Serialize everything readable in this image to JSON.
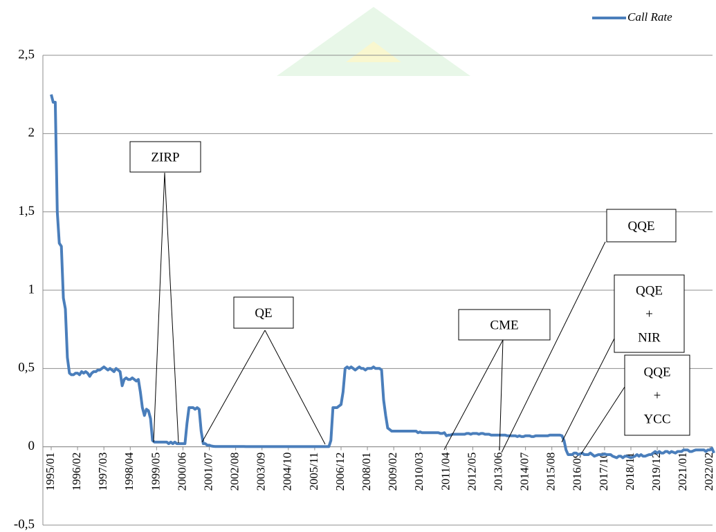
{
  "chart_data": {
    "type": "line",
    "legend_position": "top-right",
    "series": [
      {
        "name": "Call Rate",
        "color": "#4a7ebb",
        "values": [
          2.25,
          2.2,
          2.2,
          1.5,
          1.3,
          1.28,
          0.95,
          0.88,
          0.57,
          0.47,
          0.46,
          0.46,
          0.47,
          0.47,
          0.46,
          0.48,
          0.47,
          0.48,
          0.47,
          0.45,
          0.47,
          0.48,
          0.48,
          0.49,
          0.49,
          0.5,
          0.51,
          0.5,
          0.49,
          0.5,
          0.49,
          0.48,
          0.5,
          0.49,
          0.48,
          0.39,
          0.43,
          0.44,
          0.43,
          0.43,
          0.44,
          0.43,
          0.42,
          0.43,
          0.35,
          0.25,
          0.2,
          0.24,
          0.23,
          0.18,
          0.04,
          0.03,
          0.03,
          0.03,
          0.03,
          0.03,
          0.03,
          0.03,
          0.02,
          0.03,
          0.02,
          0.03,
          0.02,
          0.02,
          0.02,
          0.02,
          0.02,
          0.15,
          0.25,
          0.25,
          0.25,
          0.24,
          0.25,
          0.24,
          0.1,
          0.02,
          0.02,
          0.01,
          0.01,
          0.005,
          0.003,
          0.002,
          0.002,
          0.002,
          0.002,
          0.002,
          0.002,
          0.002,
          0.002,
          0.002,
          0.002,
          0.002,
          0.002,
          0.002,
          0.002,
          0.002,
          0.001,
          0.001,
          0.001,
          0.001,
          0.001,
          0.001,
          0.001,
          0.001,
          0.001,
          0.001,
          0.001,
          0.001,
          0.001,
          0.001,
          0.001,
          0.001,
          0.001,
          0.001,
          0.001,
          0.001,
          0.001,
          0.001,
          0.001,
          0.001,
          0.001,
          0.001,
          0.001,
          0.001,
          0.001,
          0.001,
          0.001,
          0.001,
          0.001,
          0.001,
          0.001,
          0.001,
          0.001,
          0.001,
          0.001,
          0.001,
          0.001,
          0.001,
          0.04,
          0.25,
          0.25,
          0.25,
          0.26,
          0.27,
          0.35,
          0.5,
          0.51,
          0.5,
          0.51,
          0.5,
          0.49,
          0.5,
          0.51,
          0.5,
          0.5,
          0.49,
          0.5,
          0.5,
          0.5,
          0.51,
          0.5,
          0.5,
          0.5,
          0.49,
          0.3,
          0.2,
          0.12,
          0.11,
          0.1,
          0.1,
          0.1,
          0.1,
          0.1,
          0.1,
          0.1,
          0.1,
          0.1,
          0.1,
          0.1,
          0.1,
          0.1,
          0.09,
          0.095,
          0.09,
          0.09,
          0.09,
          0.09,
          0.09,
          0.09,
          0.09,
          0.09,
          0.09,
          0.085,
          0.085,
          0.09,
          0.07,
          0.075,
          0.075,
          0.08,
          0.08,
          0.08,
          0.08,
          0.08,
          0.08,
          0.08,
          0.085,
          0.085,
          0.08,
          0.085,
          0.085,
          0.085,
          0.08,
          0.085,
          0.085,
          0.08,
          0.08,
          0.08,
          0.075,
          0.075,
          0.075,
          0.075,
          0.075,
          0.075,
          0.075,
          0.075,
          0.07,
          0.07,
          0.07,
          0.07,
          0.07,
          0.065,
          0.07,
          0.065,
          0.065,
          0.07,
          0.07,
          0.07,
          0.065,
          0.065,
          0.07,
          0.07,
          0.07,
          0.07,
          0.07,
          0.07,
          0.07,
          0.075,
          0.075,
          0.075,
          0.075,
          0.075,
          0.075,
          0.07,
          0.04,
          -0.02,
          -0.05,
          -0.05,
          -0.05,
          -0.04,
          -0.04,
          -0.05,
          -0.045,
          -0.04,
          -0.05,
          -0.05,
          -0.05,
          -0.04,
          -0.05,
          -0.06,
          -0.055,
          -0.05,
          -0.05,
          -0.05,
          -0.045,
          -0.05,
          -0.05,
          -0.05,
          -0.06,
          -0.065,
          -0.07,
          -0.06,
          -0.06,
          -0.07,
          -0.06,
          -0.06,
          -0.065,
          -0.07,
          -0.065,
          -0.06,
          -0.05,
          -0.06,
          -0.05,
          -0.06,
          -0.06,
          -0.055,
          -0.05,
          -0.05,
          -0.04,
          -0.03,
          -0.04,
          -0.03,
          -0.04,
          -0.04,
          -0.03,
          -0.03,
          -0.04,
          -0.03,
          -0.035,
          -0.04,
          -0.03,
          -0.03,
          -0.03,
          -0.02,
          -0.02,
          -0.02,
          -0.03,
          -0.03,
          -0.025,
          -0.02,
          -0.02,
          -0.02,
          -0.02,
          -0.02,
          -0.03,
          -0.02,
          -0.02,
          -0.01,
          -0.04
        ]
      }
    ],
    "categories": [
      "1995/01",
      null,
      null,
      null,
      null,
      null,
      null,
      null,
      null,
      null,
      null,
      null,
      null,
      "1996/02",
      null,
      null,
      null,
      null,
      null,
      null,
      null,
      null,
      null,
      null,
      null,
      null,
      "1997/03",
      null,
      null,
      null,
      null,
      null,
      null,
      null,
      null,
      null,
      null,
      null,
      null,
      "1998/04",
      null,
      null,
      null,
      null,
      null,
      null,
      null,
      null,
      null,
      null,
      null,
      null,
      "1999/05",
      null,
      null,
      null,
      null,
      null,
      null,
      null,
      null,
      null,
      null,
      null,
      null,
      "2000/06",
      null,
      null,
      null,
      null,
      null,
      null,
      null,
      null,
      null,
      null,
      null,
      null,
      "2001/07",
      null,
      null,
      null,
      null,
      null,
      null,
      null,
      null,
      null,
      null,
      null,
      null,
      "2002/08",
      null,
      null,
      null,
      null,
      null,
      null,
      null,
      null,
      null,
      null,
      null,
      null,
      "2003/09",
      null,
      null,
      null,
      null,
      null,
      null,
      null,
      null,
      null,
      null,
      null,
      null,
      "2004/10",
      null,
      null,
      null,
      null,
      null,
      null,
      null,
      null,
      null,
      null,
      null,
      null,
      "2005/11",
      null,
      null,
      null,
      null,
      null,
      null,
      null,
      null,
      null,
      null,
      null,
      null,
      "2006/12",
      null,
      null,
      null,
      null,
      null,
      null,
      null,
      null,
      null,
      null,
      null,
      null,
      "2008/01",
      null,
      null,
      null,
      null,
      null,
      null,
      null,
      null,
      null,
      null,
      null,
      null,
      "2009/02",
      null,
      null,
      null,
      null,
      null,
      null,
      null,
      null,
      null,
      null,
      null,
      null,
      "2010/03",
      null,
      null,
      null,
      null,
      null,
      null,
      null,
      null,
      null,
      null,
      null,
      null,
      "2011/04",
      null,
      null,
      null,
      null,
      null,
      null,
      null,
      null,
      null,
      null,
      null,
      null,
      "2012/05",
      null,
      null,
      null,
      null,
      null,
      null,
      null,
      null,
      null,
      null,
      null,
      null,
      "2013/06",
      null,
      null,
      null,
      null,
      null,
      null,
      null,
      null,
      null,
      null,
      null,
      null,
      "2014/07",
      null,
      null,
      null,
      null,
      null,
      null,
      null,
      null,
      null,
      null,
      null,
      null,
      "2015/08",
      null,
      null,
      null,
      null,
      null,
      null,
      null,
      null,
      null,
      null,
      null,
      null,
      "2016/09",
      null,
      null,
      null,
      null,
      null,
      null,
      null,
      null,
      null,
      null,
      null,
      null,
      "2017/10",
      null,
      null,
      null,
      null,
      null,
      null,
      null,
      null,
      null,
      null,
      null,
      null,
      "2018/11",
      null,
      null,
      null,
      null,
      null,
      null,
      null,
      null,
      null,
      null,
      null,
      null,
      "2019/12",
      null,
      null,
      null,
      null,
      null,
      null,
      null,
      null,
      null,
      null,
      null,
      null,
      "2021/01",
      null,
      null,
      null,
      null,
      null,
      null,
      null,
      null,
      null,
      null,
      null,
      null,
      "2022/02",
      null,
      null
    ],
    "ylim": [
      -0.5,
      2.5
    ],
    "yticks": [
      {
        "value": -0.5,
        "label": "-0,5"
      },
      0,
      {
        "value": 0.5,
        "label": "0,5"
      },
      1,
      {
        "value": 1.5,
        "label": "1,5"
      },
      2,
      {
        "value": 2.5,
        "label": "2,5"
      }
    ],
    "grid": true,
    "annotations": [
      {
        "lines": [
          "ZIRP"
        ]
      },
      {
        "lines": [
          "QE"
        ]
      },
      {
        "lines": [
          "CME"
        ]
      },
      {
        "lines": [
          "QQE"
        ]
      },
      {
        "lines": [
          "QQE",
          "+",
          "NIR"
        ]
      },
      {
        "lines": [
          "QQE",
          "+",
          "YCC"
        ]
      }
    ]
  }
}
